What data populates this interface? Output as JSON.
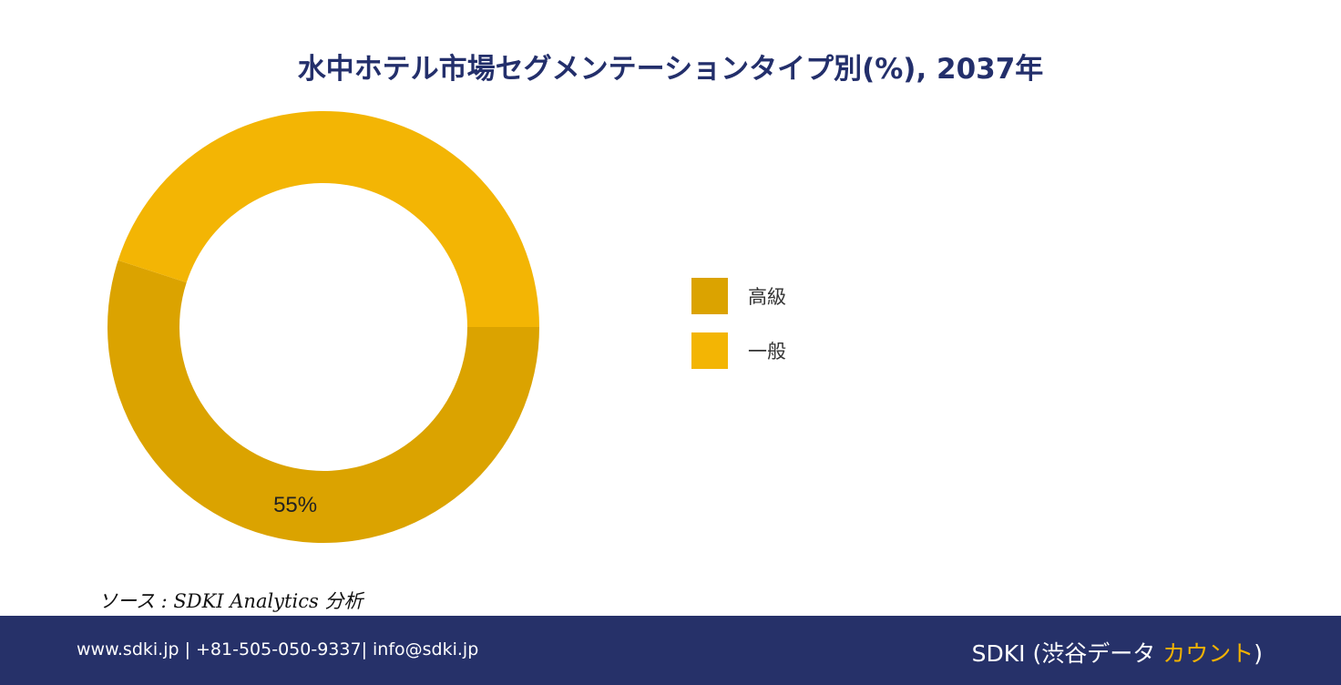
{
  "chart_data": {
    "type": "pie",
    "title": "水中ホテル市場セグメンテーションタイプ別(%), 2037年",
    "categories": [
      "高級",
      "一般"
    ],
    "values": [
      55,
      45
    ],
    "data_labels": [
      "55%",
      ""
    ],
    "colors": [
      "#dba300",
      "#f3b504"
    ],
    "donut": true,
    "legend_position": "right"
  },
  "source": "ソース : SDKI Analytics  分析",
  "footer": {
    "contact": "www.sdki.jp | +81-505-050-9337| info@sdki.jp",
    "brand_prefix": "SDKI (渋谷データ ",
    "brand_accent": "カウント",
    "brand_suffix": ")",
    "colors": {
      "background": "#263169",
      "accent": "#f2b200"
    }
  }
}
